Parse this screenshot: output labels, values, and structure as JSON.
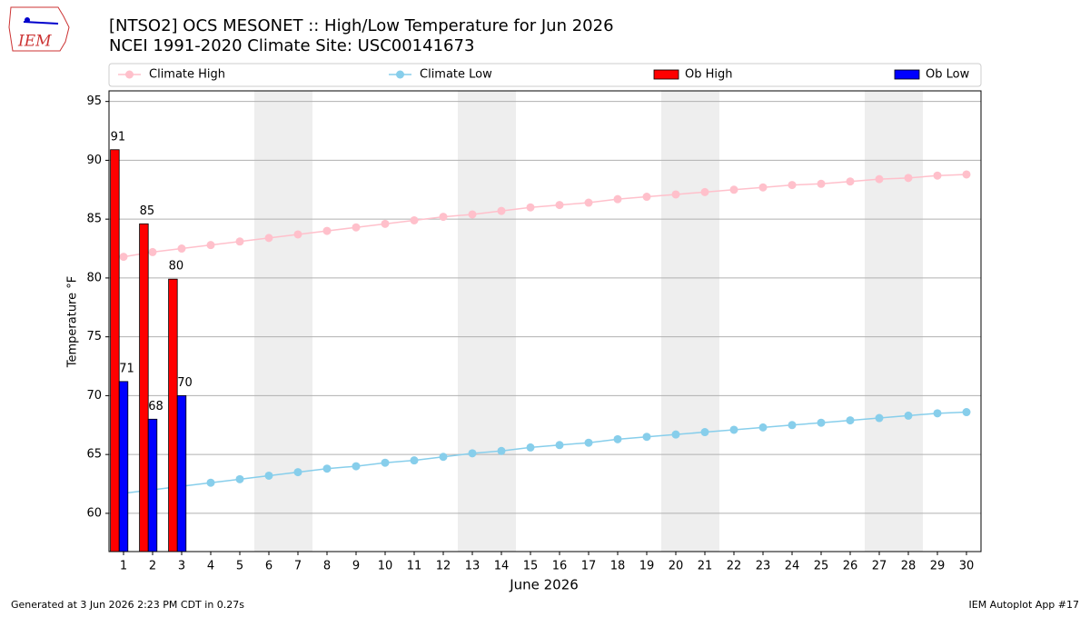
{
  "logo": "IEM",
  "chart_data": {
    "type": "bar",
    "title": "[NTSO2] OCS MESONET :: High/Low Temperature for Jun 2026",
    "subtitle": "NCEI 1991-2020 Climate Site: USC00141673",
    "xlabel": "June 2026",
    "ylabel": "Temperature °F",
    "x": [
      1,
      2,
      3,
      4,
      5,
      6,
      7,
      8,
      9,
      10,
      11,
      12,
      13,
      14,
      15,
      16,
      17,
      18,
      19,
      20,
      21,
      22,
      23,
      24,
      25,
      26,
      27,
      28,
      29,
      30
    ],
    "xlim": [
      0.5,
      30.5
    ],
    "xticks": [
      1,
      2,
      3,
      4,
      5,
      6,
      7,
      8,
      9,
      10,
      11,
      12,
      13,
      14,
      15,
      16,
      17,
      18,
      19,
      20,
      21,
      22,
      23,
      24,
      25,
      26,
      27,
      28,
      29,
      30
    ],
    "ylim": [
      56.75,
      95.9
    ],
    "yticks": [
      60,
      65,
      70,
      75,
      80,
      85,
      90,
      95
    ],
    "grid": true,
    "legend": "top",
    "weekend_spans": [
      [
        5.5,
        7.5
      ],
      [
        12.5,
        14.5
      ],
      [
        19.5,
        21.5
      ],
      [
        26.5,
        28.5
      ]
    ],
    "series": [
      {
        "name": "Climate High",
        "type": "line",
        "color": "#ffc0cb",
        "values": [
          81.8,
          82.2,
          82.5,
          82.8,
          83.1,
          83.4,
          83.7,
          84.0,
          84.3,
          84.6,
          84.9,
          85.2,
          85.4,
          85.7,
          86.0,
          86.2,
          86.4,
          86.7,
          86.9,
          87.1,
          87.3,
          87.5,
          87.7,
          87.9,
          88.0,
          88.2,
          88.4,
          88.5,
          88.7,
          88.8
        ]
      },
      {
        "name": "Climate Low",
        "type": "line",
        "color": "#87ceeb",
        "values": [
          61.7,
          62.0,
          62.3,
          62.6,
          62.9,
          63.2,
          63.5,
          63.8,
          64.0,
          64.3,
          64.5,
          64.8,
          65.1,
          65.3,
          65.6,
          65.8,
          66.0,
          66.3,
          66.5,
          66.7,
          66.9,
          67.1,
          67.3,
          67.5,
          67.7,
          67.9,
          68.1,
          68.3,
          68.5,
          68.6
        ]
      },
      {
        "name": "Ob High",
        "type": "bar",
        "color": "#ff0000",
        "values": [
          90.9,
          84.6,
          79.9,
          null,
          null,
          null,
          null,
          null,
          null,
          null,
          null,
          null,
          null,
          null,
          null,
          null,
          null,
          null,
          null,
          null,
          null,
          null,
          null,
          null,
          null,
          null,
          null,
          null,
          null,
          null
        ],
        "value_labels": [
          "91",
          "85",
          "80",
          null,
          null,
          null,
          null,
          null,
          null,
          null,
          null,
          null,
          null,
          null,
          null,
          null,
          null,
          null,
          null,
          null,
          null,
          null,
          null,
          null,
          null,
          null,
          null,
          null,
          null,
          null
        ]
      },
      {
        "name": "Ob Low",
        "type": "bar",
        "color": "#0000ff",
        "values": [
          71.2,
          68.0,
          70.0,
          null,
          null,
          null,
          null,
          null,
          null,
          null,
          null,
          null,
          null,
          null,
          null,
          null,
          null,
          null,
          null,
          null,
          null,
          null,
          null,
          null,
          null,
          null,
          null,
          null,
          null,
          null
        ],
        "value_labels": [
          "71",
          "68",
          "70",
          null,
          null,
          null,
          null,
          null,
          null,
          null,
          null,
          null,
          null,
          null,
          null,
          null,
          null,
          null,
          null,
          null,
          null,
          null,
          null,
          null,
          null,
          null,
          null,
          null,
          null,
          null
        ]
      }
    ],
    "footer_left": "Generated at 3 Jun 2026 2:23 PM CDT in 0.27s",
    "footer_right": "IEM Autoplot App #17"
  }
}
